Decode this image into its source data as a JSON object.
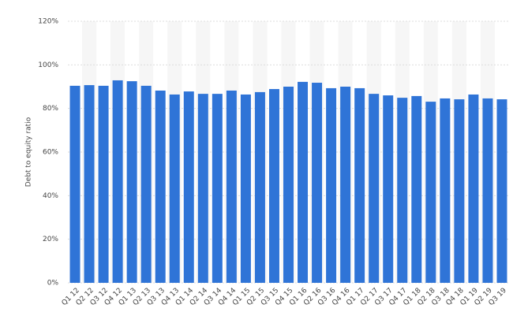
{
  "chart_data": {
    "type": "bar",
    "y_label": "Debt to equity ratio",
    "categories": [
      "Q1 12",
      "Q2 12",
      "Q3 12",
      "Q4 12",
      "Q1 13",
      "Q2 13",
      "Q3 13",
      "Q4 13",
      "Q1 14",
      "Q2 14",
      "Q3 14",
      "Q4 14",
      "Q1 15",
      "Q2 15",
      "Q3 15",
      "Q4 15",
      "Q1 16",
      "Q2 16",
      "Q3 16",
      "Q4 16",
      "Q1 17",
      "Q2 17",
      "Q3 17",
      "Q4 17",
      "Q1 18",
      "Q2 18",
      "Q3 18",
      "Q4 18",
      "Q1 19",
      "Q2 19",
      "Q3 19"
    ],
    "values": [
      90.4,
      90.7,
      90.4,
      92.9,
      92.5,
      90.4,
      88.2,
      86.4,
      87.8,
      86.7,
      86.7,
      88.2,
      86.4,
      87.5,
      88.9,
      90,
      92.2,
      91.8,
      89.3,
      90,
      89.3,
      86.7,
      86,
      84.9,
      85.7,
      83.1,
      84.6,
      84.2,
      86.4,
      84.6,
      84.2
    ],
    "color": "#2f74d7",
    "ylim": [
      0,
      120
    ],
    "yticks": [
      {
        "value": 0,
        "label": "0%"
      },
      {
        "value": 20,
        "label": "20%"
      },
      {
        "value": 40,
        "label": "40%"
      },
      {
        "value": 60,
        "label": "60%"
      },
      {
        "value": 80,
        "label": "80%"
      },
      {
        "value": 100,
        "label": "100%"
      },
      {
        "value": 120,
        "label": "120%"
      }
    ],
    "grid": true
  }
}
